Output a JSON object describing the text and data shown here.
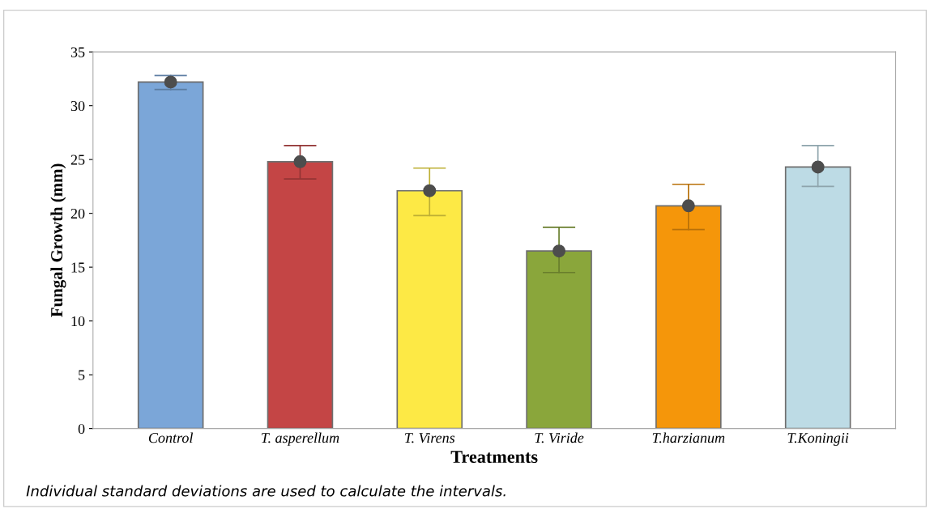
{
  "chart_data": {
    "type": "bar",
    "xlabel": "Treatments",
    "ylabel": "Fungal Growth (mm)",
    "categories": [
      "Control",
      "T. asperellum",
      "T. Virens",
      "T. Viride",
      "T.harzianum",
      "T.Koningii"
    ],
    "series": [
      {
        "type": "bar",
        "colors": [
          "#7ba6d8",
          "#c44545",
          "#fde945",
          "#8aa63b",
          "#f5960a",
          "#bddbe5"
        ],
        "values": [
          32.2,
          24.8,
          22.1,
          16.5,
          20.7,
          24.3
        ],
        "errors": [
          [
            31.5,
            32.8
          ],
          [
            23.2,
            26.3
          ],
          [
            19.8,
            24.2
          ],
          [
            14.5,
            18.7
          ],
          [
            18.5,
            22.7
          ],
          [
            22.5,
            26.3
          ]
        ]
      },
      {
        "type": "scatter",
        "color": "#4d4d4d",
        "x": [
          "Control",
          "T. asperellum",
          "T. Virens",
          "T. Viride",
          "T.harzianum",
          "T.Koningii"
        ],
        "values": [
          32.2,
          24.8,
          22.1,
          16.5,
          20.7,
          24.3
        ]
      }
    ],
    "ylim": [
      0,
      35
    ],
    "yticks": [
      0,
      5,
      10,
      15,
      20,
      25,
      30,
      35
    ],
    "grid": false,
    "legend": false,
    "marker": "circle",
    "annotations": [
      "Individual standard deviations are used to calculate the intervals."
    ]
  }
}
